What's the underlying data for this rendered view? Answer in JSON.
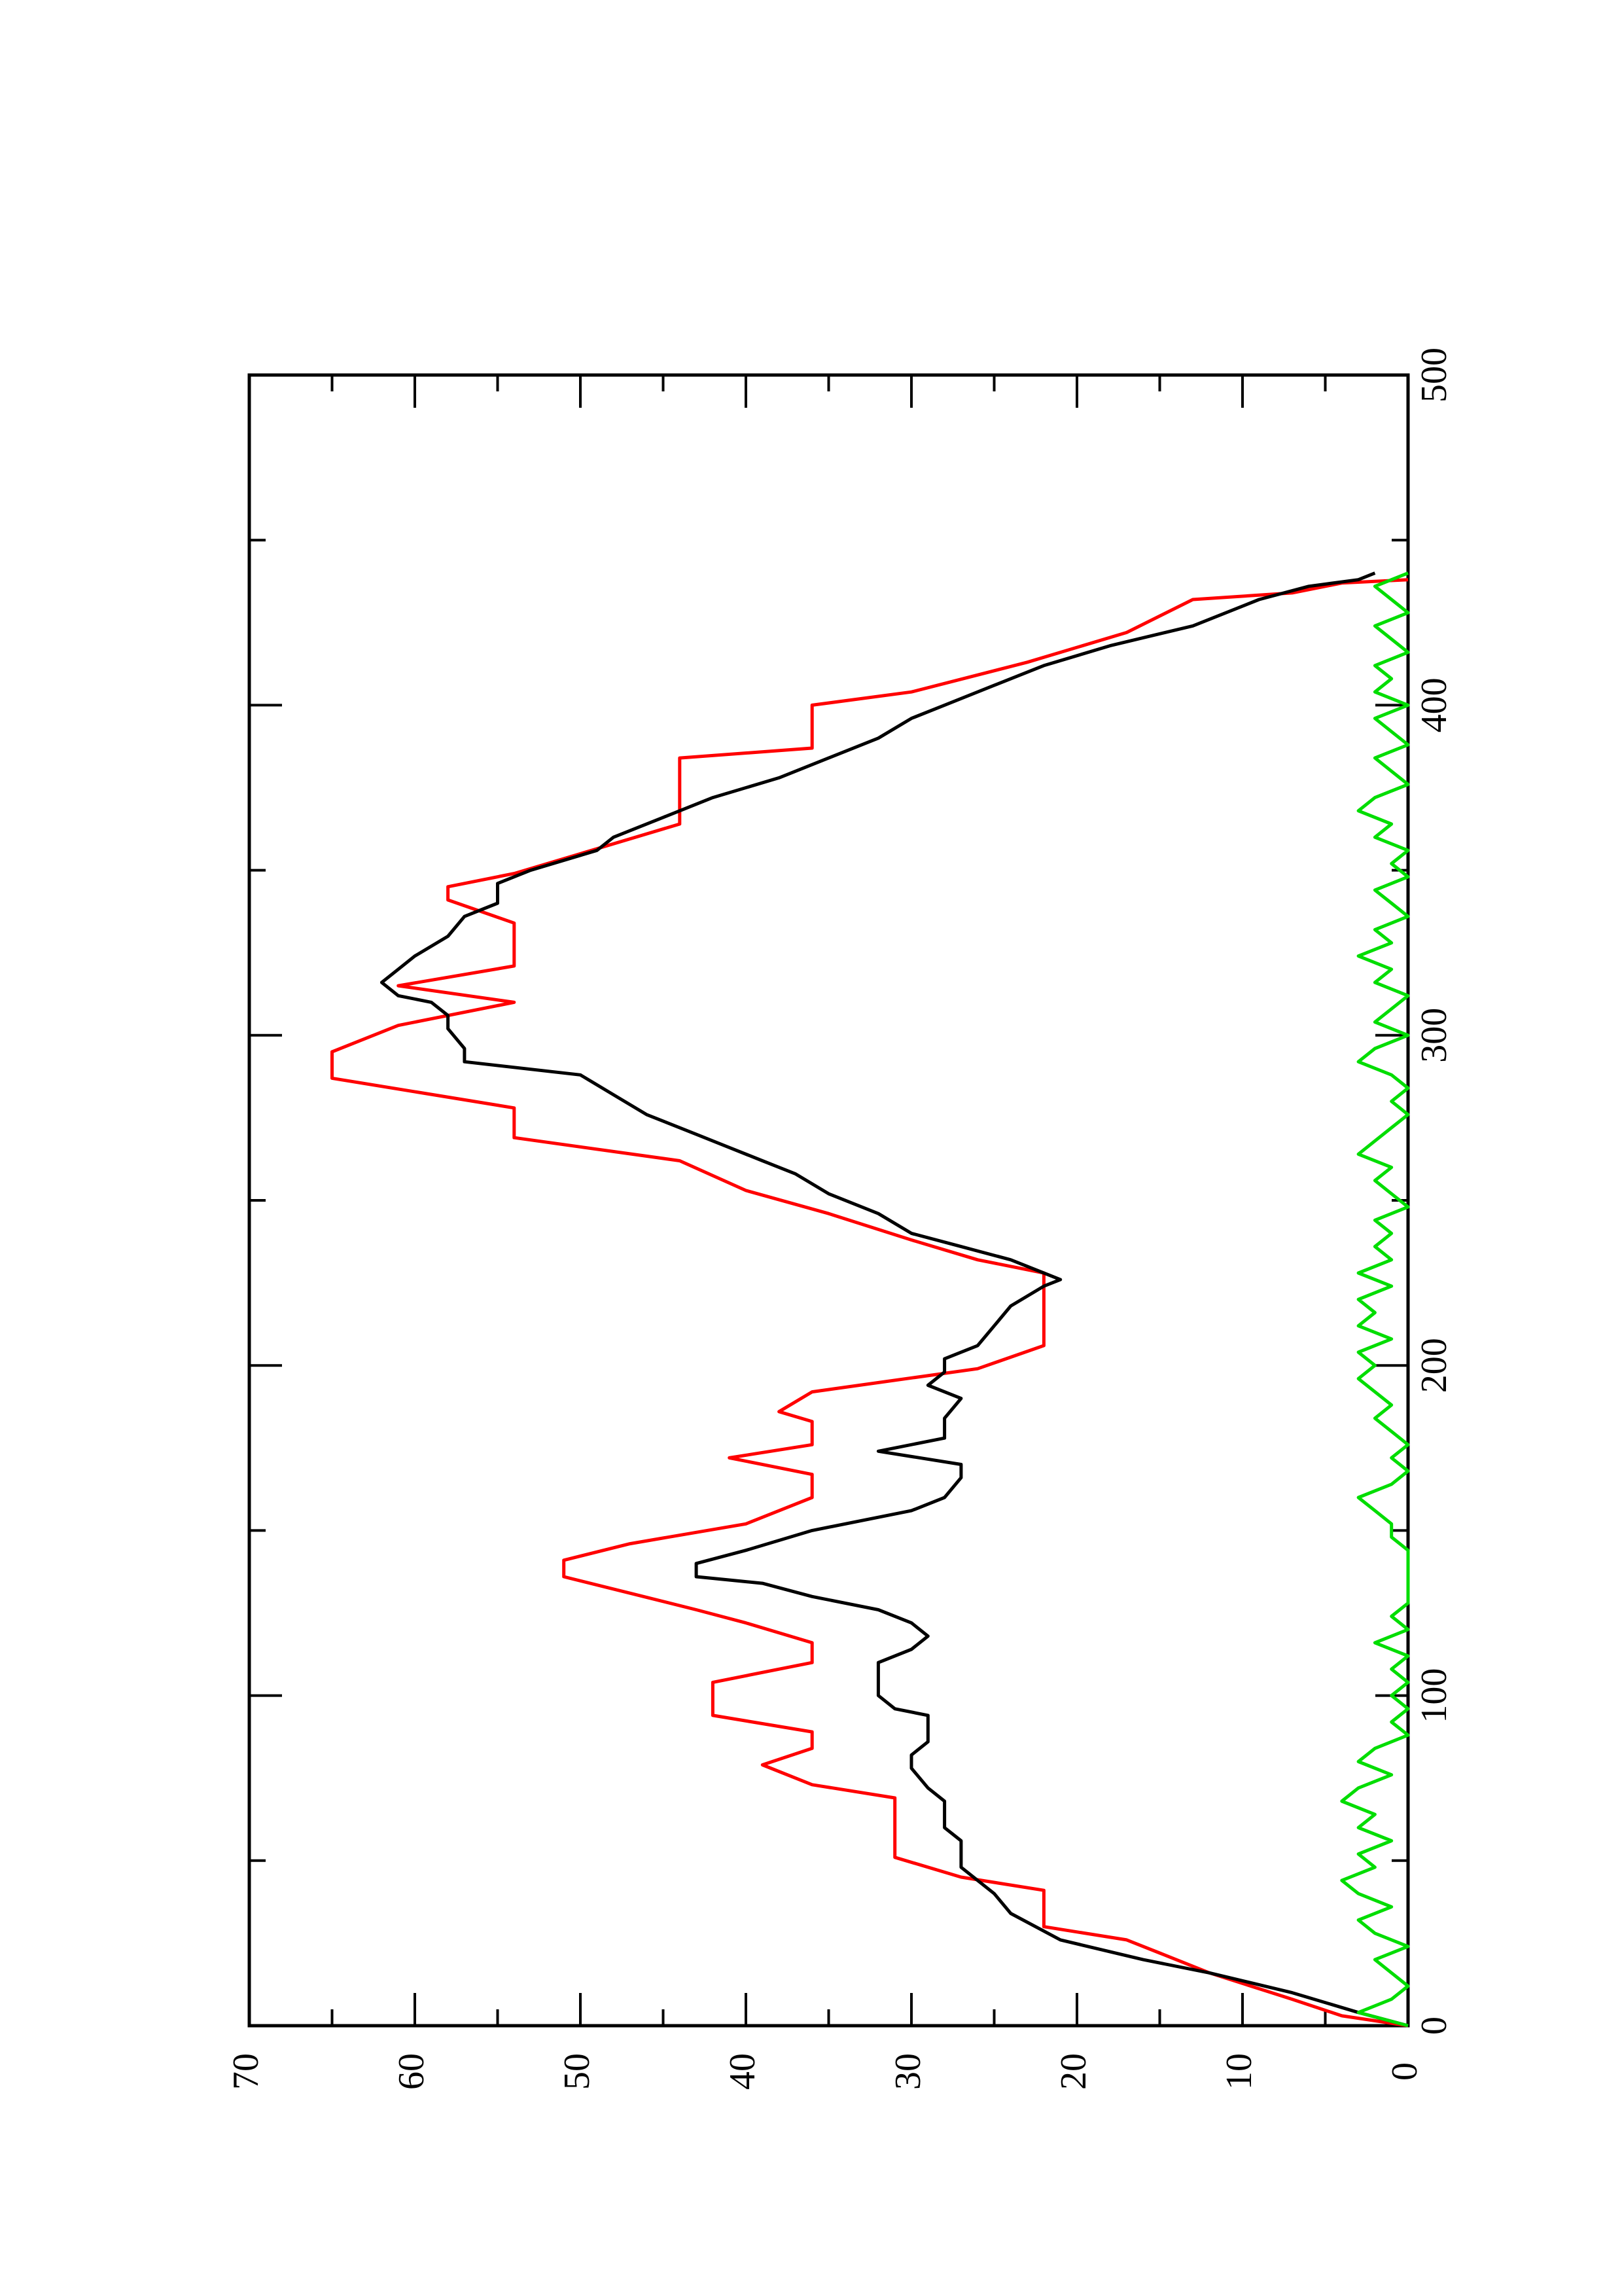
{
  "chart_data": {
    "type": "line",
    "title": "",
    "xlabel": "",
    "ylabel": "",
    "orientation": "rotated 90 degrees counter-clockwise",
    "grid": false,
    "xlim": [
      0,
      500
    ],
    "ylim": [
      0,
      70
    ],
    "x_ticks": [
      "0",
      "100",
      "200",
      "300",
      "400",
      "500"
    ],
    "y_ticks": [
      "0",
      "10",
      "20",
      "30",
      "40",
      "50",
      "60",
      "70"
    ],
    "series": [
      {
        "color": "#ff0000",
        "style": "step",
        "points": [
          [
            0,
            0
          ],
          [
            3,
            4
          ],
          [
            8,
            7
          ],
          [
            16,
            12
          ],
          [
            22,
            15
          ],
          [
            26,
            17
          ],
          [
            30,
            22
          ],
          [
            41,
            22
          ],
          [
            45,
            27
          ],
          [
            51,
            31
          ],
          [
            69,
            31
          ],
          [
            73,
            36
          ],
          [
            79,
            39
          ],
          [
            84,
            36
          ],
          [
            89,
            36
          ],
          [
            94,
            42
          ],
          [
            104,
            42
          ],
          [
            110,
            36
          ],
          [
            116,
            36
          ],
          [
            122,
            40
          ],
          [
            126,
            43
          ],
          [
            131,
            47
          ],
          [
            136,
            51
          ],
          [
            141,
            51
          ],
          [
            146,
            47
          ],
          [
            152,
            40
          ],
          [
            160,
            36
          ],
          [
            167,
            36
          ],
          [
            172,
            41
          ],
          [
            176,
            36
          ],
          [
            183,
            36
          ],
          [
            186,
            38
          ],
          [
            192,
            36
          ],
          [
            199,
            26
          ],
          [
            206,
            22
          ],
          [
            228,
            22
          ],
          [
            232,
            26
          ],
          [
            238,
            30
          ],
          [
            246,
            35
          ],
          [
            253,
            40
          ],
          [
            262,
            44
          ],
          [
            269,
            54
          ],
          [
            278,
            54
          ],
          [
            287,
            65
          ],
          [
            295,
            65
          ],
          [
            303,
            61
          ],
          [
            310,
            54
          ],
          [
            315,
            61
          ],
          [
            321,
            54
          ],
          [
            334,
            54
          ],
          [
            341,
            58
          ],
          [
            345,
            58
          ],
          [
            349,
            54
          ],
          [
            364,
            44
          ],
          [
            384,
            44
          ],
          [
            387,
            36
          ],
          [
            400,
            36
          ],
          [
            404,
            30
          ],
          [
            413,
            23
          ],
          [
            422,
            17
          ],
          [
            432,
            13
          ],
          [
            434,
            7
          ],
          [
            437,
            4
          ],
          [
            438,
            0
          ]
        ]
      },
      {
        "color": "#000000",
        "style": "line",
        "points": [
          [
            0,
            0
          ],
          [
            4,
            3
          ],
          [
            10,
            7
          ],
          [
            16,
            12
          ],
          [
            20,
            16
          ],
          [
            26,
            21
          ],
          [
            34,
            24
          ],
          [
            40,
            25
          ],
          [
            44,
            26
          ],
          [
            48,
            27
          ],
          [
            52,
            27
          ],
          [
            56,
            27
          ],
          [
            60,
            28
          ],
          [
            64,
            28
          ],
          [
            68,
            28
          ],
          [
            72,
            29
          ],
          [
            78,
            30
          ],
          [
            82,
            30
          ],
          [
            86,
            29
          ],
          [
            90,
            29
          ],
          [
            94,
            29
          ],
          [
            96,
            31
          ],
          [
            100,
            32
          ],
          [
            106,
            32
          ],
          [
            110,
            32
          ],
          [
            114,
            30
          ],
          [
            118,
            29
          ],
          [
            122,
            30
          ],
          [
            126,
            32
          ],
          [
            130,
            36
          ],
          [
            134,
            39
          ],
          [
            136,
            43
          ],
          [
            140,
            43
          ],
          [
            144,
            40
          ],
          [
            150,
            36
          ],
          [
            156,
            30
          ],
          [
            160,
            28
          ],
          [
            166,
            27
          ],
          [
            170,
            27
          ],
          [
            174,
            32
          ],
          [
            178,
            28
          ],
          [
            184,
            28
          ],
          [
            190,
            27
          ],
          [
            194,
            29
          ],
          [
            198,
            28
          ],
          [
            202,
            28
          ],
          [
            206,
            26
          ],
          [
            212,
            25
          ],
          [
            218,
            24
          ],
          [
            224,
            22
          ],
          [
            226,
            21
          ],
          [
            228,
            22
          ],
          [
            232,
            24
          ],
          [
            236,
            27
          ],
          [
            240,
            30
          ],
          [
            246,
            32
          ],
          [
            252,
            35
          ],
          [
            258,
            37
          ],
          [
            262,
            39
          ],
          [
            266,
            41
          ],
          [
            270,
            43
          ],
          [
            276,
            46
          ],
          [
            282,
            48
          ],
          [
            288,
            50
          ],
          [
            292,
            57
          ],
          [
            296,
            57
          ],
          [
            302,
            58
          ],
          [
            306,
            58
          ],
          [
            310,
            59
          ],
          [
            312,
            61
          ],
          [
            316,
            62
          ],
          [
            320,
            61
          ],
          [
            324,
            60
          ],
          [
            330,
            58
          ],
          [
            336,
            57
          ],
          [
            340,
            55
          ],
          [
            346,
            55
          ],
          [
            350,
            53
          ],
          [
            356,
            49
          ],
          [
            360,
            48
          ],
          [
            366,
            45
          ],
          [
            372,
            42
          ],
          [
            378,
            38
          ],
          [
            384,
            35
          ],
          [
            390,
            32
          ],
          [
            396,
            30
          ],
          [
            400,
            28
          ],
          [
            406,
            25
          ],
          [
            412,
            22
          ],
          [
            418,
            18
          ],
          [
            424,
            13
          ],
          [
            428,
            11
          ],
          [
            432,
            9
          ],
          [
            436,
            6
          ],
          [
            438,
            3
          ],
          [
            440,
            2
          ]
        ]
      },
      {
        "color": "#00dd00",
        "style": "line",
        "points": [
          [
            0,
            0
          ],
          [
            4,
            3
          ],
          [
            8,
            1
          ],
          [
            12,
            0
          ],
          [
            16,
            1
          ],
          [
            20,
            2
          ],
          [
            24,
            0
          ],
          [
            28,
            2
          ],
          [
            32,
            3
          ],
          [
            36,
            1
          ],
          [
            40,
            3
          ],
          [
            44,
            4
          ],
          [
            48,
            2
          ],
          [
            52,
            3
          ],
          [
            56,
            1
          ],
          [
            60,
            3
          ],
          [
            64,
            2
          ],
          [
            68,
            4
          ],
          [
            72,
            3
          ],
          [
            76,
            1
          ],
          [
            80,
            3
          ],
          [
            84,
            2
          ],
          [
            88,
            0
          ],
          [
            92,
            1
          ],
          [
            96,
            0
          ],
          [
            100,
            1
          ],
          [
            104,
            0
          ],
          [
            108,
            1
          ],
          [
            112,
            0
          ],
          [
            116,
            2
          ],
          [
            120,
            0
          ],
          [
            124,
            1
          ],
          [
            128,
            0
          ],
          [
            132,
            0
          ],
          [
            136,
            0
          ],
          [
            140,
            0
          ],
          [
            144,
            0
          ],
          [
            148,
            1
          ],
          [
            152,
            1
          ],
          [
            156,
            2
          ],
          [
            160,
            3
          ],
          [
            164,
            1
          ],
          [
            168,
            0
          ],
          [
            172,
            1
          ],
          [
            176,
            0
          ],
          [
            180,
            1
          ],
          [
            184,
            2
          ],
          [
            188,
            1
          ],
          [
            192,
            2
          ],
          [
            196,
            3
          ],
          [
            200,
            2
          ],
          [
            204,
            3
          ],
          [
            208,
            1
          ],
          [
            212,
            3
          ],
          [
            216,
            2
          ],
          [
            220,
            3
          ],
          [
            224,
            1
          ],
          [
            228,
            3
          ],
          [
            232,
            1
          ],
          [
            236,
            2
          ],
          [
            240,
            1
          ],
          [
            244,
            2
          ],
          [
            248,
            0
          ],
          [
            252,
            1
          ],
          [
            256,
            2
          ],
          [
            260,
            1
          ],
          [
            264,
            3
          ],
          [
            268,
            2
          ],
          [
            272,
            1
          ],
          [
            276,
            0
          ],
          [
            280,
            1
          ],
          [
            284,
            0
          ],
          [
            288,
            1
          ],
          [
            292,
            3
          ],
          [
            296,
            2
          ],
          [
            300,
            0
          ],
          [
            304,
            2
          ],
          [
            308,
            1
          ],
          [
            312,
            0
          ],
          [
            316,
            2
          ],
          [
            320,
            1
          ],
          [
            324,
            3
          ],
          [
            328,
            1
          ],
          [
            332,
            2
          ],
          [
            336,
            0
          ],
          [
            340,
            1
          ],
          [
            344,
            2
          ],
          [
            348,
            0
          ],
          [
            352,
            1
          ],
          [
            356,
            0
          ],
          [
            360,
            2
          ],
          [
            364,
            1
          ],
          [
            368,
            3
          ],
          [
            372,
            2
          ],
          [
            376,
            0
          ],
          [
            380,
            1
          ],
          [
            384,
            2
          ],
          [
            388,
            0
          ],
          [
            392,
            1
          ],
          [
            396,
            2
          ],
          [
            400,
            0
          ],
          [
            404,
            2
          ],
          [
            408,
            1
          ],
          [
            412,
            2
          ],
          [
            416,
            0
          ],
          [
            420,
            1
          ],
          [
            424,
            2
          ],
          [
            428,
            0
          ],
          [
            432,
            1
          ],
          [
            436,
            2
          ],
          [
            440,
            0
          ]
        ]
      }
    ]
  }
}
